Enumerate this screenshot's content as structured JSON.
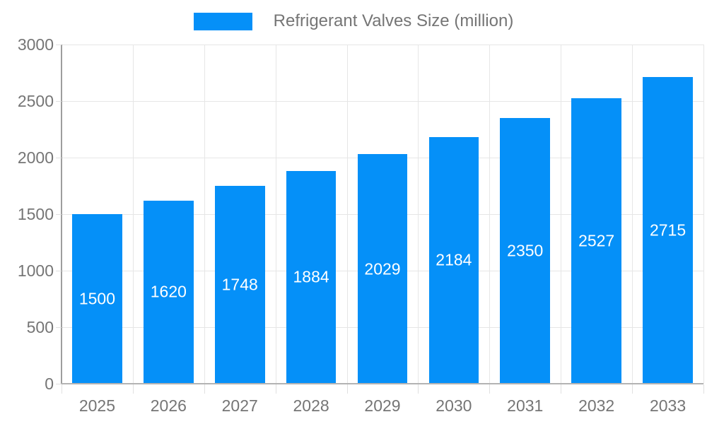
{
  "legend": {
    "label": "Refrigerant Valves Size (million)"
  },
  "colors": {
    "bar": "#0590f8",
    "bar_label": "#ffffff",
    "axis_text": "#757575",
    "grid": "#e6e6e6",
    "tick": "#e0e0e0",
    "y_axis_line": "#9e9e9e",
    "x_axis_line": "#b3b3b3",
    "background": "#ffffff"
  },
  "chart_data": {
    "type": "bar",
    "title": "Refrigerant Valves Size (million)",
    "categories": [
      "2025",
      "2026",
      "2027",
      "2028",
      "2029",
      "2030",
      "2031",
      "2032",
      "2033"
    ],
    "values": [
      1500,
      1620,
      1748,
      1884,
      2029,
      2184,
      2350,
      2527,
      2715
    ],
    "series_name": "Refrigerant Valves Size (million)",
    "xlabel": "",
    "ylabel": "",
    "ylim": [
      0,
      3000
    ],
    "yticks": [
      0,
      500,
      1000,
      1500,
      2000,
      2500,
      3000
    ],
    "grid": true,
    "legend_position": "top",
    "bar_labels_visible": true,
    "bar_label_position": "center"
  }
}
